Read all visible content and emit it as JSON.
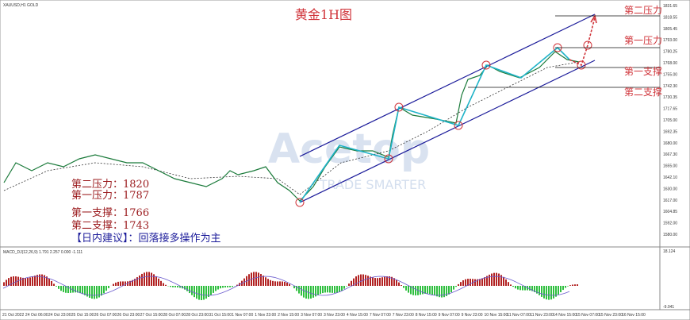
{
  "header": {
    "symbol": "XAUUSD,H1 GOLD",
    "title": "黄金1H图"
  },
  "levels": {
    "labels": [
      "第二压力",
      "第一压力",
      "第一支撑",
      "第二支撑"
    ]
  },
  "notes": {
    "lines": [
      "第二压力：1820",
      "第一压力：1787",
      "第一支撑：1766",
      "第二支撑：1743"
    ],
    "advice": "【日内建议】：回落接多操作为主"
  },
  "watermark": {
    "brand": "Acetop",
    "slogan": "TRADE SMARTER"
  },
  "price_axis": {
    "ticks": [
      "1831.65",
      "1818.55",
      "1805.45",
      "1793.00",
      "1780.25",
      "1768.00",
      "1755.00",
      "1742.30",
      "1730.35",
      "1717.65",
      "1705.00",
      "1692.35",
      "1680.00",
      "1667.30",
      "1655.00",
      "1642.10",
      "1630.00",
      "1617.00",
      "1604.85",
      "1592.00",
      "1580.00"
    ]
  },
  "macd": {
    "label": "MACD_DJ(12,26,9) 1.791 2.257 0.000 -1.111",
    "top": "18.124",
    "bottom": "-9.041"
  },
  "time_axis": {
    "ticks": [
      "21 Oct 2022",
      "24 Oct 06:00",
      "24 Oct 23:00",
      "25 Oct 15:00",
      "26 Oct 07:00",
      "26 Oct 23:00",
      "27 Oct 15:00",
      "28 Oct 07:00",
      "28 Oct 23:00",
      "31 Oct 15:00",
      "1 Nov 07:00",
      "1 Nov 23:00",
      "2 Nov 15:00",
      "3 Nov 07:00",
      "3 Nov 23:00",
      "4 Nov 15:00",
      "7 Nov 07:00",
      "7 Nov 23:00",
      "8 Nov 15:00",
      "9 Nov 07:00",
      "9 Nov 23:00",
      "10 Nov 15:00",
      "11 Nov 07:00",
      "11 Nov 23:00",
      "14 Nov 15:00",
      "15 Nov 07:00",
      "15 Nov 23:00",
      "16 Nov 15:00"
    ]
  }
}
